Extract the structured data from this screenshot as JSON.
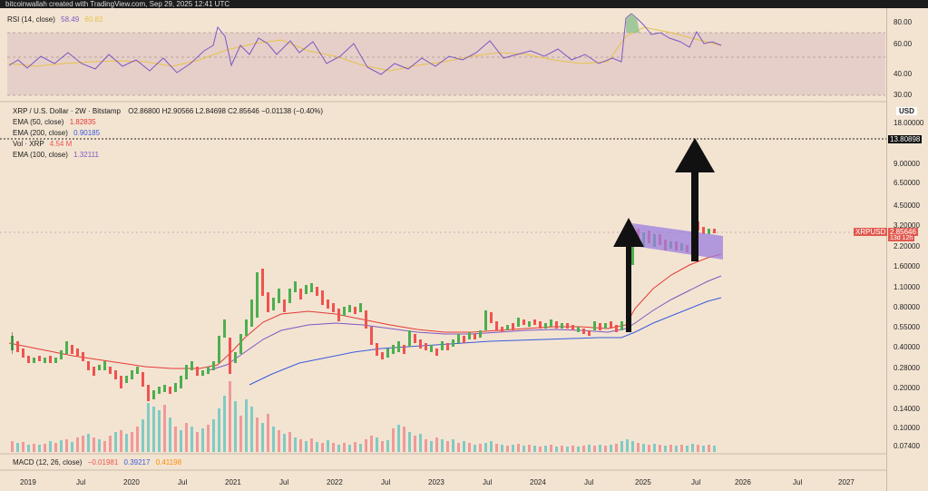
{
  "header": {
    "credit": "bitcoinwallah created with TradingView.com, Sep 29, 2025 12:41 UTC"
  },
  "rsi": {
    "title": "RSI (14, close)",
    "value": "58.49",
    "ma_value": "60.82",
    "colors": {
      "line": "#7e57c2",
      "ma": "#e6c24a",
      "band": "#e6cfc9"
    },
    "ticks": [
      "80.00",
      "60.00",
      "40.00",
      "30.00"
    ]
  },
  "main": {
    "symbol_line": "XRP / U.S. Dollar · 2W · Bitstamp",
    "open": "O2.86800",
    "high": "H2.90566",
    "low": "L2.84698",
    "close": "C2.85646",
    "change": "−0.01138 (−0.40%)",
    "ema50": {
      "label": "EMA (50, close)",
      "value": "1.82835",
      "color": "#e53935"
    },
    "ema200": {
      "label": "EMA (200, close)",
      "value": "0.90185",
      "color": "#3b5bdb"
    },
    "vol": {
      "label": "Vol · XRP",
      "value": "4.54 M",
      "color": "#ef5350"
    },
    "ema100": {
      "label": "EMA (100, close)",
      "value": "1.32111",
      "color": "#7e57c2"
    },
    "currency": "USD",
    "price_ticks": [
      "18.00000",
      "13.80898",
      "9.00000",
      "6.50000",
      "4.50000",
      "3.20000",
      "2.20000",
      "1.60000",
      "1.10000",
      "0.80000",
      "0.55000",
      "0.40000",
      "0.28000",
      "0.20000",
      "0.14000",
      "0.10000",
      "0.07400"
    ],
    "symbol_tag": "XRPUSD",
    "last_price": "2.85646",
    "countdown": "13d 12h",
    "dotted_level": "13.80898"
  },
  "macd": {
    "label": "MACD (12, 26, close)",
    "v1": "−0.01981",
    "v2": "0.39217",
    "v3": "0.41198"
  },
  "time_axis": [
    "2019",
    "Jul",
    "2020",
    "Jul",
    "2021",
    "Jul",
    "2022",
    "Jul",
    "2023",
    "Jul",
    "2024",
    "Jul",
    "2025",
    "Jul",
    "2026",
    "Jul",
    "2027"
  ],
  "chart_data": {
    "type": "candlestick",
    "symbol": "XRPUSD",
    "interval": "2W",
    "last": 2.85646,
    "highlight_level": 13.80898,
    "ema50_last": 1.82835,
    "ema100_last": 1.32111,
    "ema200_last": 0.90185
  }
}
